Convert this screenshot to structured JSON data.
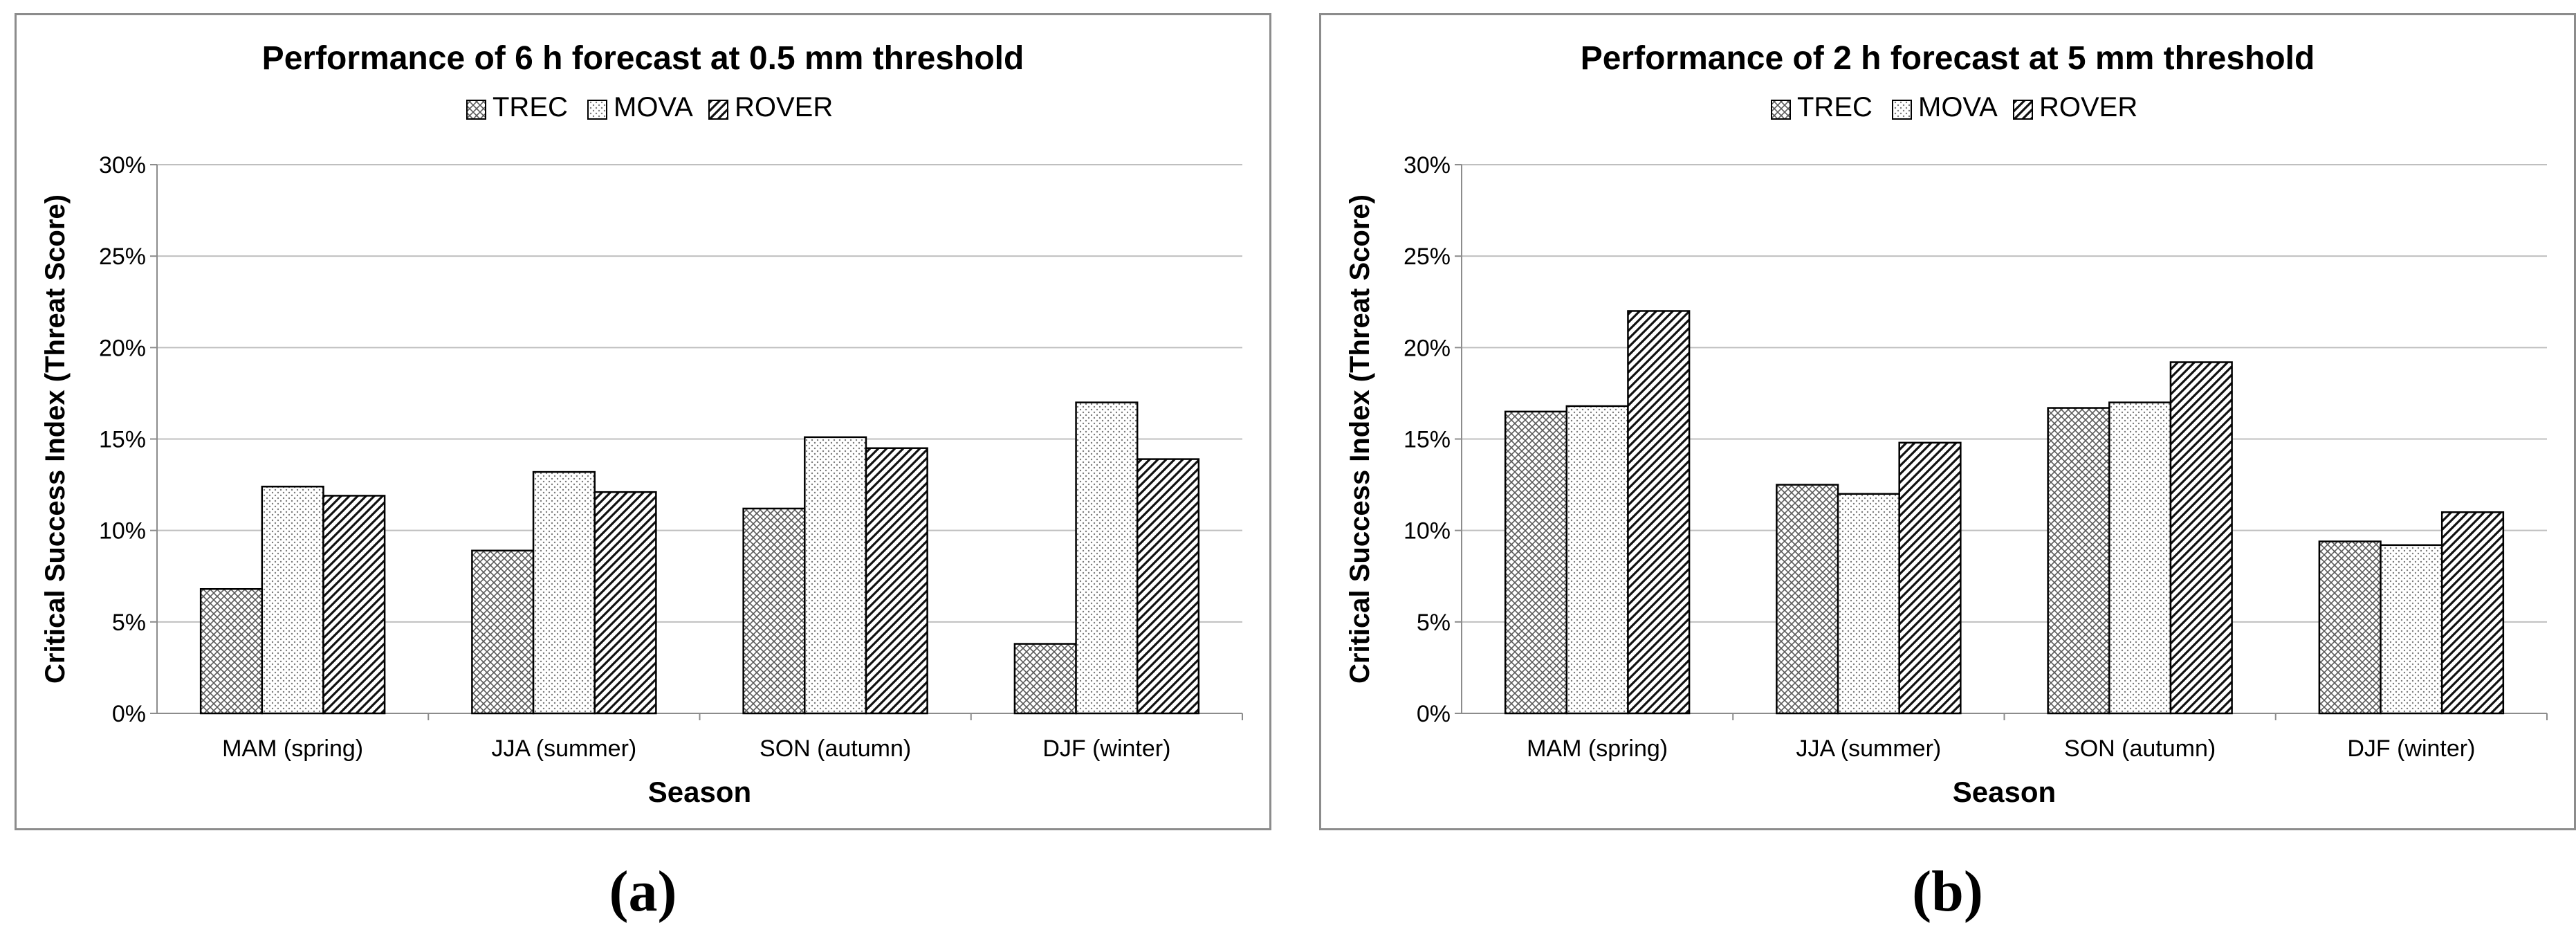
{
  "chart_data": [
    {
      "type": "bar",
      "panel": "a",
      "title": "Performance of 6 h forecast at 0.5 mm threshold",
      "xlabel": "Season",
      "ylabel": "Critical Success Index (Threat Score)",
      "ylim": [
        0,
        30
      ],
      "yticks": [
        "0%",
        "5%",
        "10%",
        "15%",
        "20%",
        "25%",
        "30%"
      ],
      "grid": true,
      "legend": "top-center",
      "categories": [
        "MAM (spring)",
        "JJA (summer)",
        "SON (autumn)",
        "DJF (winter)"
      ],
      "series": [
        {
          "name": "TREC",
          "pattern": "crosshatch",
          "values": [
            6.8,
            8.9,
            11.2,
            3.8
          ]
        },
        {
          "name": "MOVA",
          "pattern": "dots",
          "values": [
            12.4,
            13.2,
            15.1,
            17.0
          ]
        },
        {
          "name": "ROVER",
          "pattern": "diagonal",
          "values": [
            11.9,
            12.1,
            14.5,
            13.9
          ]
        }
      ]
    },
    {
      "type": "bar",
      "panel": "b",
      "title": "Performance of 2 h forecast at 5 mm threshold",
      "xlabel": "Season",
      "ylabel": "Critical Success Index (Threat Score)",
      "ylim": [
        0,
        30
      ],
      "yticks": [
        "0%",
        "5%",
        "10%",
        "15%",
        "20%",
        "25%",
        "30%"
      ],
      "grid": true,
      "legend": "top-center",
      "categories": [
        "MAM (spring)",
        "JJA (summer)",
        "SON (autumn)",
        "DJF (winter)"
      ],
      "series": [
        {
          "name": "TREC",
          "pattern": "crosshatch",
          "values": [
            16.5,
            12.5,
            16.7,
            9.4
          ]
        },
        {
          "name": "MOVA",
          "pattern": "dots",
          "values": [
            16.8,
            12.0,
            17.0,
            9.2
          ]
        },
        {
          "name": "ROVER",
          "pattern": "diagonal",
          "values": [
            22.0,
            14.8,
            19.2,
            11.0
          ]
        }
      ]
    }
  ],
  "captions": {
    "a": "(a)",
    "b": "(b)"
  },
  "colors": {
    "frame": "#8c8c8c",
    "grid": "#bfbfbf",
    "bar_stroke": "#000000"
  }
}
